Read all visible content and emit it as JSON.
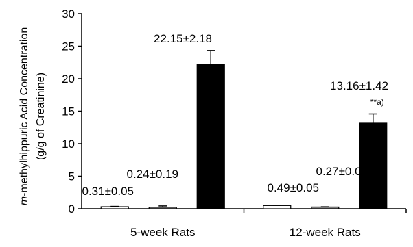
{
  "chart_data": {
    "type": "bar",
    "title": "",
    "xlabel": "",
    "ylabel": {
      "prefix_italic": "m",
      "line1_rest": "-methylhippuric Acid Concentration",
      "line2": "(g/g of Creatinine)"
    },
    "ylim": [
      0,
      30
    ],
    "yticks": [
      0,
      5,
      10,
      15,
      20,
      25,
      30
    ],
    "grid": false,
    "legend": "none",
    "categories": [
      "5-week Rats",
      "12-week Rats"
    ],
    "series": [
      {
        "fill": "#ffffff",
        "values": [
          0.31,
          0.49
        ],
        "errors": [
          0.05,
          0.05
        ],
        "labels": [
          "0.31±0.05",
          "0.49±0.05"
        ]
      },
      {
        "fill": "#808080",
        "values": [
          0.24,
          0.27
        ],
        "errors": [
          0.19,
          0.03
        ],
        "labels": [
          "0.24±0.19",
          "0.27±0.03"
        ]
      },
      {
        "fill": "#000000",
        "values": [
          22.15,
          13.16
        ],
        "errors": [
          2.18,
          1.42
        ],
        "labels": [
          "22.15±2.18",
          "13.16±1.42"
        ]
      }
    ],
    "annotations": [
      {
        "category": 1,
        "series": 2,
        "text": "**a)"
      }
    ]
  }
}
